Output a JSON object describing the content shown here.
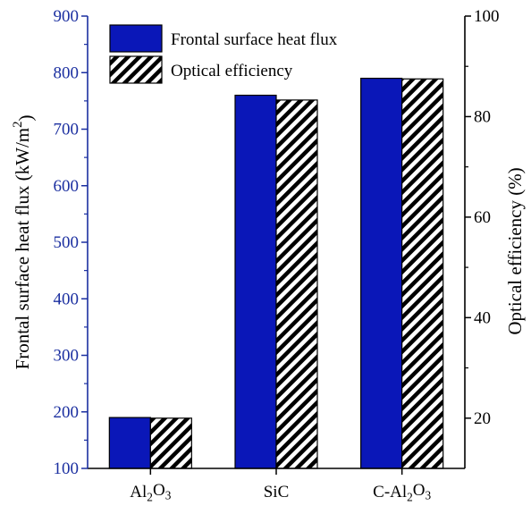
{
  "chart_data": {
    "type": "bar",
    "categories": [
      "Al₂O₃",
      "SiC",
      "C-Al₂O₃"
    ],
    "series": [
      {
        "name": "Frontal surface heat flux",
        "axis": "left",
        "values": [
          190,
          760,
          790
        ],
        "color": "#0a17b8",
        "pattern": "solid"
      },
      {
        "name": "Optical efficiency",
        "axis": "right",
        "values": [
          20,
          83.3,
          87.5
        ],
        "color": "#000000",
        "pattern": "diagonal-hatch"
      }
    ],
    "y_left": {
      "label": "Frontal surface heat flux (kW/m²)",
      "lim": [
        100,
        900
      ],
      "ticks": [
        100,
        200,
        300,
        400,
        500,
        600,
        700,
        800,
        900
      ],
      "color": "#1b2fa0"
    },
    "y_right": {
      "label": "Optical efficiency (%)",
      "lim": [
        10,
        100
      ],
      "ticks": [
        20,
        40,
        60,
        80,
        100
      ],
      "color": "#000000"
    },
    "legend": {
      "position": "top-left"
    },
    "grid": false
  }
}
